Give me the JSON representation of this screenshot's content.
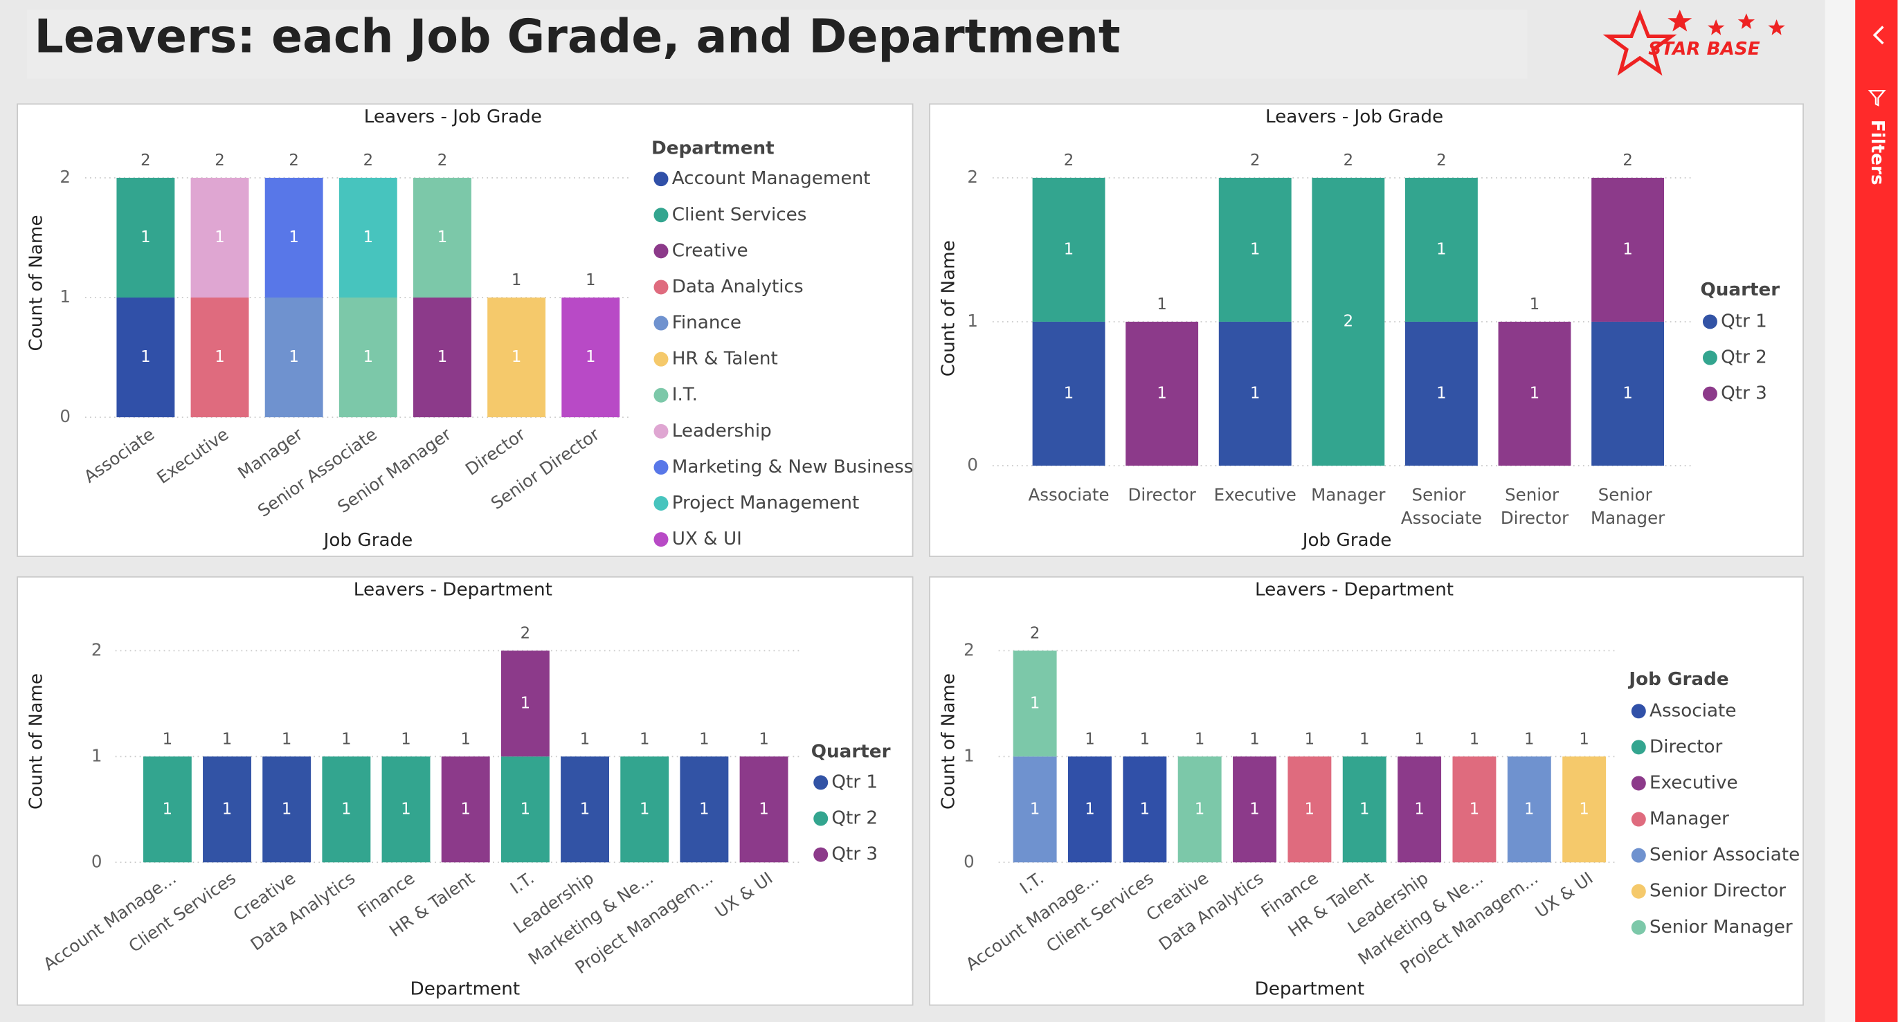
{
  "page": {
    "title": "Leavers: each Job Grade, and Department",
    "logo": "STAR BASE",
    "filters": "Filters"
  },
  "chart_data": [
    {
      "type": "bar",
      "stacked": true,
      "title": "Leavers - Job Grade",
      "x_label": "Job Grade",
      "y_label": "Count of Name",
      "legend_title": "Department",
      "categories": [
        "Associate",
        "Executive",
        "Manager",
        "Senior Associate",
        "Senior Manager",
        "Director",
        "Senior Director"
      ],
      "series": [
        {
          "name": "Account Management",
          "color": "#3050a8",
          "values": [
            1,
            null,
            null,
            null,
            null,
            null,
            null
          ]
        },
        {
          "name": "Client Services",
          "color": "#33a58f",
          "values": [
            1,
            null,
            null,
            null,
            null,
            null,
            null
          ]
        },
        {
          "name": "Creative",
          "color": "#8c3a8a",
          "values": [
            null,
            null,
            null,
            null,
            1,
            null,
            null
          ]
        },
        {
          "name": "Data Analytics",
          "color": "#df6b7e",
          "values": [
            null,
            1,
            null,
            null,
            null,
            null,
            null
          ]
        },
        {
          "name": "Finance",
          "color": "#6f92cf",
          "values": [
            null,
            null,
            1,
            null,
            null,
            null,
            null
          ]
        },
        {
          "name": "HR & Talent",
          "color": "#f5c96b",
          "values": [
            null,
            null,
            null,
            null,
            null,
            1,
            null
          ]
        },
        {
          "name": "I.T.",
          "color": "#7cc8a9",
          "values": [
            null,
            null,
            null,
            1,
            1,
            null,
            null
          ]
        },
        {
          "name": "Leadership",
          "color": "#dfa6d2",
          "values": [
            null,
            1,
            null,
            null,
            null,
            null,
            null
          ]
        },
        {
          "name": "Marketing & New Business",
          "color": "#5877e8",
          "values": [
            null,
            null,
            1,
            null,
            null,
            null,
            null
          ]
        },
        {
          "name": "Project Management",
          "color": "#47c4be",
          "values": [
            null,
            null,
            null,
            1,
            null,
            null,
            null
          ]
        },
        {
          "name": "UX & UI",
          "color": "#b84ac6",
          "values": [
            null,
            null,
            null,
            null,
            null,
            null,
            1
          ]
        }
      ],
      "totals": [
        2,
        2,
        2,
        2,
        2,
        1,
        1
      ],
      "ylim": [
        0,
        2
      ],
      "yticks": [
        0,
        1,
        2
      ],
      "grid": true
    },
    {
      "type": "bar",
      "stacked": true,
      "title": "Leavers - Job Grade",
      "x_label": "Job Grade",
      "y_label": "Count of Name",
      "legend_title": "Quarter",
      "categories": [
        "Associate",
        "Director",
        "Executive",
        "Manager",
        "Senior Associate",
        "Senior Director",
        "Senior Manager"
      ],
      "series": [
        {
          "name": "Qtr 1",
          "color": "#3253a5",
          "values": [
            1,
            null,
            1,
            null,
            1,
            null,
            1
          ]
        },
        {
          "name": "Qtr 2",
          "color": "#33a58f",
          "values": [
            1,
            null,
            1,
            2,
            1,
            null,
            null
          ]
        },
        {
          "name": "Qtr 3",
          "color": "#8c3a8a",
          "values": [
            null,
            1,
            null,
            null,
            null,
            1,
            1
          ]
        }
      ],
      "totals": [
        2,
        1,
        2,
        2,
        2,
        1,
        2
      ],
      "ylim": [
        0,
        2
      ],
      "yticks": [
        0,
        1,
        2
      ],
      "grid": true
    },
    {
      "type": "bar",
      "stacked": true,
      "title": "Leavers - Department",
      "x_label": "Department",
      "y_label": "Count of Name",
      "legend_title": "Quarter",
      "categories": [
        "Account Manage...",
        "Client Services",
        "Creative",
        "Data Analytics",
        "Finance",
        "HR & Talent",
        "I.T.",
        "Leadership",
        "Marketing & Ne...",
        "Project Managem...",
        "UX & UI"
      ],
      "series": [
        {
          "name": "Qtr 1",
          "color": "#3253a5",
          "values": [
            null,
            1,
            1,
            null,
            null,
            null,
            null,
            1,
            null,
            1,
            null
          ]
        },
        {
          "name": "Qtr 2",
          "color": "#33a58f",
          "values": [
            1,
            null,
            null,
            1,
            1,
            null,
            1,
            null,
            1,
            null,
            null
          ]
        },
        {
          "name": "Qtr 3",
          "color": "#8c3a8a",
          "values": [
            null,
            null,
            null,
            null,
            null,
            1,
            1,
            null,
            null,
            null,
            1
          ]
        }
      ],
      "totals": [
        1,
        1,
        1,
        1,
        1,
        1,
        2,
        1,
        1,
        1,
        1
      ],
      "ylim": [
        0,
        2
      ],
      "yticks": [
        0,
        1,
        2
      ],
      "grid": true
    },
    {
      "type": "bar",
      "stacked": true,
      "title": "Leavers - Department",
      "x_label": "Department",
      "y_label": "Count of Name",
      "legend_title": "Job Grade",
      "categories": [
        "I.T.",
        "Account Manage...",
        "Client Services",
        "Creative",
        "Data Analytics",
        "Finance",
        "HR & Talent",
        "Leadership",
        "Marketing & Ne...",
        "Project Managem...",
        "UX & UI"
      ],
      "series": [
        {
          "name": "Associate",
          "color": "#3050a8",
          "values": [
            null,
            1,
            1,
            null,
            null,
            null,
            null,
            null,
            null,
            null,
            null
          ]
        },
        {
          "name": "Director",
          "color": "#33a58f",
          "values": [
            null,
            null,
            null,
            null,
            null,
            null,
            1,
            null,
            null,
            null,
            null
          ]
        },
        {
          "name": "Executive",
          "color": "#8c3a8a",
          "values": [
            null,
            null,
            null,
            null,
            1,
            null,
            null,
            1,
            null,
            null,
            null
          ]
        },
        {
          "name": "Manager",
          "color": "#df6b7e",
          "values": [
            null,
            null,
            null,
            null,
            null,
            1,
            null,
            null,
            1,
            null,
            null
          ]
        },
        {
          "name": "Senior Associate",
          "color": "#6f92cf",
          "values": [
            1,
            null,
            null,
            null,
            null,
            null,
            null,
            null,
            null,
            1,
            null
          ]
        },
        {
          "name": "Senior Director",
          "color": "#f5c96b",
          "values": [
            null,
            null,
            null,
            null,
            null,
            null,
            null,
            null,
            null,
            null,
            1
          ]
        },
        {
          "name": "Senior Manager",
          "color": "#7cc8a9",
          "values": [
            1,
            null,
            null,
            1,
            null,
            null,
            null,
            null,
            null,
            null,
            null
          ]
        }
      ],
      "totals": [
        2,
        1,
        1,
        1,
        1,
        1,
        1,
        1,
        1,
        1,
        1
      ],
      "ylim": [
        0,
        2
      ],
      "yticks": [
        0,
        1,
        2
      ],
      "grid": true
    }
  ]
}
